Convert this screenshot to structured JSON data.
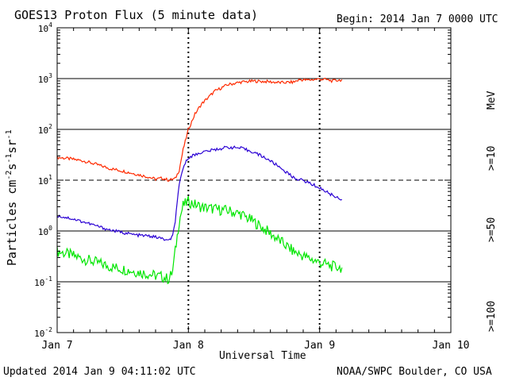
{
  "chart_data": {
    "type": "line",
    "title": "GOES13 Proton Flux (5 minute data)",
    "begin_label": "Begin: 2014 Jan 7 0000 UTC",
    "xlabel": "Universal Time",
    "ylabel_main": "Particles cm",
    "ylabel_sup1": "-2",
    "ylabel_mid1": "s",
    "ylabel_sup2": "-1",
    "ylabel_mid2": "sr",
    "ylabel_sup3": "-1",
    "x_ticks": [
      "Jan 7",
      "Jan 8",
      "Jan 9",
      "Jan 10"
    ],
    "y_tick_base": "10",
    "y_tick_exps": [
      "4",
      "3",
      "2",
      "1",
      "0",
      "-1",
      "-2"
    ],
    "ylim_log10": [
      -2,
      4
    ],
    "xlim_days": [
      0,
      3
    ],
    "right_labels": [
      {
        "text": ">=10",
        "unit": "MeV",
        "color": "#ff2a00"
      },
      {
        "text": ">=50",
        "color": "#2a00d4"
      },
      {
        "text": ">=100",
        "color": "#00e600"
      }
    ],
    "footer_left": "Updated 2014 Jan  9 04:11:02 UTC",
    "footer_right": "NOAA/SWPC Boulder, CO USA",
    "series": [
      {
        "name": ">=10 MeV",
        "color": "#ff2a00",
        "points": [
          [
            0.0,
            1.45
          ],
          [
            0.1,
            1.42
          ],
          [
            0.2,
            1.38
          ],
          [
            0.3,
            1.31
          ],
          [
            0.4,
            1.23
          ],
          [
            0.5,
            1.18
          ],
          [
            0.6,
            1.12
          ],
          [
            0.7,
            1.06
          ],
          [
            0.75,
            1.02
          ],
          [
            0.8,
            1.04
          ],
          [
            0.85,
            1.0
          ],
          [
            0.9,
            1.03
          ],
          [
            0.93,
            1.2
          ],
          [
            0.96,
            1.6
          ],
          [
            1.0,
            2.0
          ],
          [
            1.05,
            2.3
          ],
          [
            1.1,
            2.5
          ],
          [
            1.2,
            2.75
          ],
          [
            1.3,
            2.88
          ],
          [
            1.4,
            2.93
          ],
          [
            1.5,
            2.95
          ],
          [
            1.6,
            2.94
          ],
          [
            1.7,
            2.92
          ],
          [
            1.8,
            2.93
          ],
          [
            1.85,
            2.98
          ],
          [
            1.9,
            2.97
          ],
          [
            2.0,
            2.99
          ],
          [
            2.05,
            2.98
          ],
          [
            2.1,
            2.95
          ],
          [
            2.12,
            2.96
          ],
          [
            2.15,
            2.97
          ],
          [
            2.17,
            2.98
          ]
        ]
      },
      {
        "name": ">=50 MeV",
        "color": "#2a00d4",
        "points": [
          [
            0.0,
            0.3
          ],
          [
            0.1,
            0.25
          ],
          [
            0.2,
            0.18
          ],
          [
            0.3,
            0.1
          ],
          [
            0.4,
            0.02
          ],
          [
            0.5,
            -0.03
          ],
          [
            0.6,
            -0.08
          ],
          [
            0.7,
            -0.1
          ],
          [
            0.75,
            -0.12
          ],
          [
            0.8,
            -0.15
          ],
          [
            0.85,
            -0.2
          ],
          [
            0.88,
            -0.1
          ],
          [
            0.9,
            0.2
          ],
          [
            0.93,
            0.9
          ],
          [
            0.96,
            1.25
          ],
          [
            1.0,
            1.45
          ],
          [
            1.05,
            1.5
          ],
          [
            1.1,
            1.55
          ],
          [
            1.2,
            1.6
          ],
          [
            1.3,
            1.65
          ],
          [
            1.4,
            1.63
          ],
          [
            1.5,
            1.55
          ],
          [
            1.6,
            1.42
          ],
          [
            1.7,
            1.25
          ],
          [
            1.8,
            1.05
          ],
          [
            1.9,
            0.97
          ],
          [
            2.0,
            0.85
          ],
          [
            2.1,
            0.7
          ],
          [
            2.17,
            0.62
          ]
        ]
      },
      {
        "name": ">=100 MeV",
        "color": "#00e600",
        "points": [
          [
            0.0,
            -0.4
          ],
          [
            0.1,
            -0.47
          ],
          [
            0.2,
            -0.55
          ],
          [
            0.3,
            -0.62
          ],
          [
            0.4,
            -0.7
          ],
          [
            0.5,
            -0.75
          ],
          [
            0.6,
            -0.8
          ],
          [
            0.7,
            -0.85
          ],
          [
            0.75,
            -0.88
          ],
          [
            0.8,
            -0.9
          ],
          [
            0.85,
            -0.95
          ],
          [
            0.88,
            -0.8
          ],
          [
            0.9,
            -0.4
          ],
          [
            0.93,
            0.2
          ],
          [
            0.96,
            0.5
          ],
          [
            1.0,
            0.58
          ],
          [
            1.05,
            0.52
          ],
          [
            1.1,
            0.47
          ],
          [
            1.2,
            0.43
          ],
          [
            1.3,
            0.4
          ],
          [
            1.4,
            0.33
          ],
          [
            1.5,
            0.18
          ],
          [
            1.6,
            0.0
          ],
          [
            1.7,
            -0.2
          ],
          [
            1.8,
            -0.4
          ],
          [
            1.9,
            -0.52
          ],
          [
            2.0,
            -0.62
          ],
          [
            2.1,
            -0.7
          ],
          [
            2.17,
            -0.72
          ]
        ]
      }
    ]
  }
}
